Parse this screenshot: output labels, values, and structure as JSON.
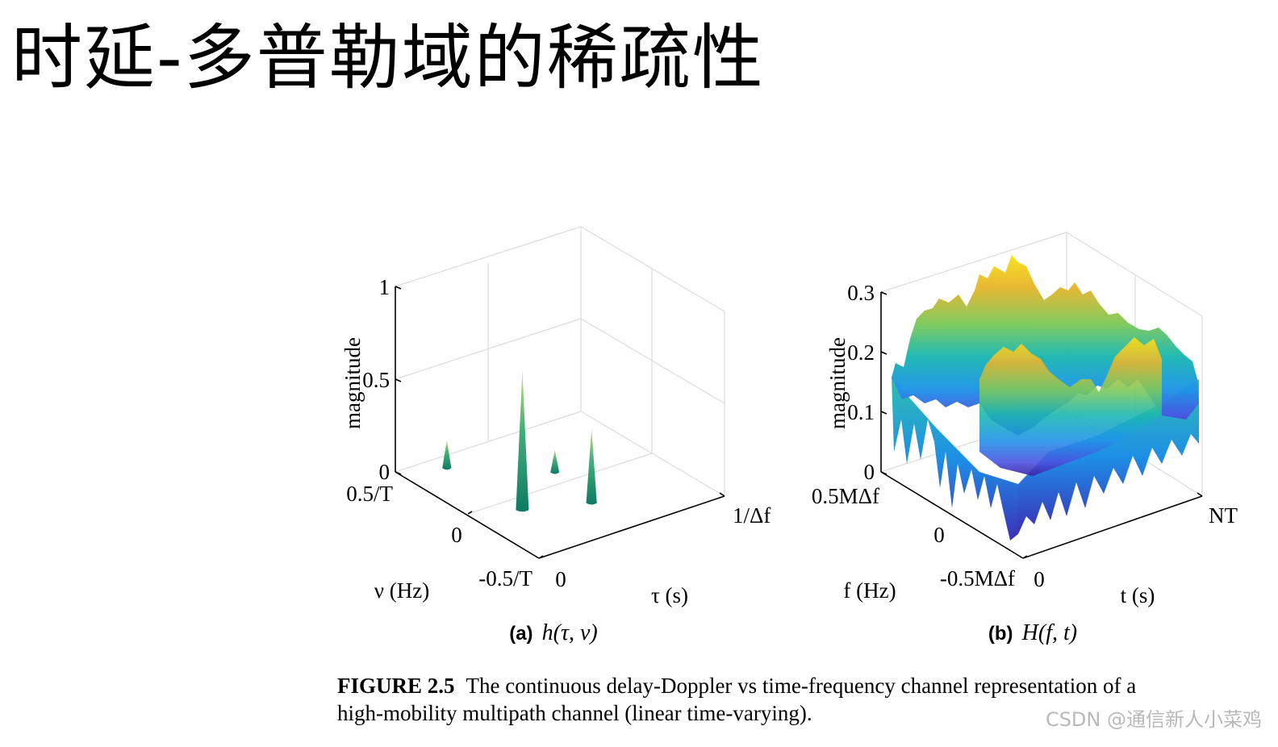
{
  "slide": {
    "title": "时延-多普勒域的稀疏性"
  },
  "figure": {
    "number": "FIGURE 2.5",
    "caption_line1": "The continuous delay-Doppler vs time-frequency channel representation of a",
    "caption_line2": "high-mobility multipath channel (linear time-varying).",
    "panel_a": {
      "label": "(a)",
      "expression": "h(τ, ν)",
      "z_axis_label": "magnitude",
      "z_ticks": [
        "0",
        "0.5",
        "1"
      ],
      "nu_axis_label": "ν (Hz)",
      "nu_ticks": [
        "0.5/T",
        "0",
        "-0.5/T"
      ],
      "tau_axis_label": "τ (s)",
      "tau_ticks": [
        "0",
        "1/Δf"
      ]
    },
    "panel_b": {
      "label": "(b)",
      "expression": "H(f, t)",
      "z_axis_label": "magnitude",
      "z_ticks": [
        "0",
        "0.1",
        "0.2",
        "0.3"
      ],
      "f_axis_label": "f (Hz)",
      "f_ticks": [
        "0.5MΔf",
        "0",
        "-0.5MΔf"
      ],
      "t_axis_label": "t (s)",
      "t_ticks": [
        "0",
        "NT"
      ]
    }
  },
  "chart_data": [
    {
      "type": "scatter",
      "series": [
        {
          "values": [
            {
              "tau_frac": 0.22,
              "nu_frac": 0.6,
              "magnitude": 0.75
            },
            {
              "tau_frac": 0.2,
              "nu_frac": 0.1,
              "magnitude": 0.15
            },
            {
              "tau_frac": 0.5,
              "nu_frac": 0.72,
              "magnitude": 0.4
            },
            {
              "tau_frac": 0.55,
              "nu_frac": 0.4,
              "magnitude": 0.12
            }
          ]
        }
      ],
      "xlabel": "τ (s)",
      "ylabel": "ν (Hz)",
      "zlabel": "magnitude",
      "zlim": [
        0,
        1
      ],
      "grid": true
    },
    {
      "type": "area",
      "series": [],
      "xlabel": "t (s)",
      "ylabel": "f (Hz)",
      "zlabel": "magnitude",
      "zlim": [
        0,
        0.3
      ],
      "colormap": [
        "#3e26a8",
        "#2d7ff9",
        "#13b8c3",
        "#5fc861",
        "#d6bb31",
        "#f9fb0e"
      ],
      "grid": true
    }
  ],
  "watermark": "CSDN @通信新人小菜鸡"
}
